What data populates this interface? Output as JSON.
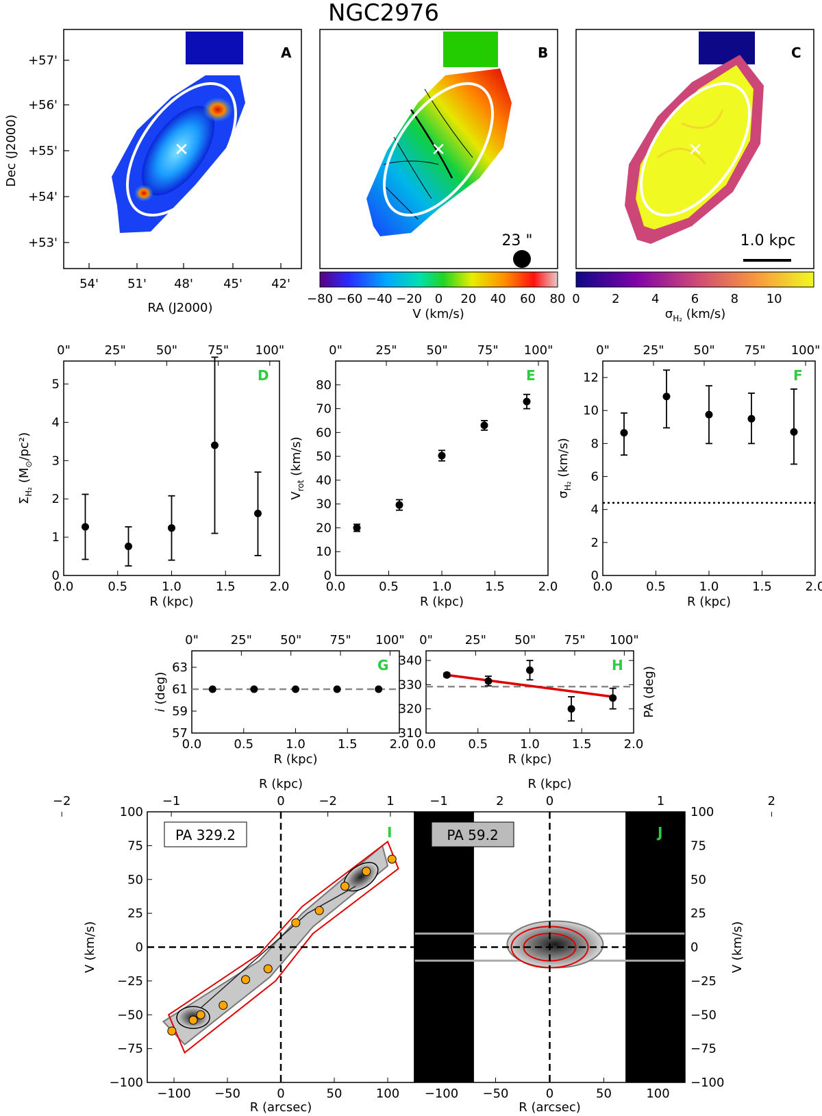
{
  "figure": {
    "title": "NGC2976",
    "panel_letter_color": "#2ecc40",
    "panels": {
      "A": "A",
      "B": "B",
      "C": "C",
      "D": "D",
      "E": "E",
      "F": "F",
      "G": "G",
      "H": "H",
      "I": "I",
      "J": "J"
    }
  },
  "maps": {
    "ra_label": "RA (J2000)",
    "dec_label": "Dec (J2000)",
    "ra_ticks": [
      "54'",
      "51'",
      "48'",
      "45'",
      "42'"
    ],
    "dec_ticks": [
      "+57'",
      "+56'",
      "+55'",
      "+54'",
      "+53'"
    ],
    "beam_label": "23 \"",
    "scalebar_label": "1.0 kpc",
    "velocity_colorbar": {
      "label": "V (km/s)",
      "ticks": [
        "−80",
        "−60",
        "−40",
        "−20",
        "0",
        "20",
        "40",
        "60",
        "80"
      ],
      "range": [
        -80,
        80
      ]
    },
    "dispersion_colorbar": {
      "label": "σH₂ (km/s)",
      "label_main": "σ",
      "label_sub": "H₂",
      "label_unit": " (km/s)",
      "ticks": [
        "0",
        "2",
        "4",
        "6",
        "8",
        "10"
      ],
      "range": [
        0,
        12
      ]
    }
  },
  "chart_data": [
    {
      "panel": "D",
      "type": "scatter",
      "xlabel": "R (kpc)",
      "ylabel": "ΣH₂ (M☉/pc²)",
      "ylabel_main": "Σ",
      "ylabel_sub": "H₂",
      "ylabel_rest": " (M",
      "ylabel_sun": "⊙",
      "ylabel_end": "/pc²)",
      "xlim": [
        0,
        2
      ],
      "ylim": [
        0,
        5.6
      ],
      "x_ticks": [
        "0.0",
        "0.5",
        "1.0",
        "1.5",
        "2.0"
      ],
      "y_ticks": [
        "0",
        "1",
        "2",
        "3",
        "4",
        "5"
      ],
      "top_ticks": [
        "0\"",
        "25\"",
        "50\"",
        "75\"",
        "100\""
      ],
      "x": [
        0.2,
        0.6,
        1.0,
        1.4,
        1.8
      ],
      "y": [
        1.27,
        0.76,
        1.24,
        3.4,
        1.62
      ],
      "yerr_low": [
        0.85,
        0.51,
        0.84,
        2.3,
        1.1
      ],
      "yerr_high": [
        0.85,
        0.51,
        0.84,
        2.3,
        1.08
      ]
    },
    {
      "panel": "E",
      "type": "scatter",
      "xlabel": "R (kpc)",
      "ylabel": "Vrot (km/s)",
      "ylabel_main": "V",
      "ylabel_sub": "rot",
      "ylabel_rest": " (km/s)",
      "xlim": [
        0,
        2
      ],
      "ylim": [
        0,
        90
      ],
      "x_ticks": [
        "0.0",
        "0.5",
        "1.0",
        "1.5",
        "2.0"
      ],
      "y_ticks": [
        "0",
        "10",
        "20",
        "30",
        "40",
        "50",
        "60",
        "70",
        "80"
      ],
      "top_ticks": [
        "0\"",
        "25\"",
        "50\"",
        "75\"",
        "100\""
      ],
      "x": [
        0.2,
        0.6,
        1.0,
        1.4,
        1.8
      ],
      "y": [
        20,
        29.6,
        50.3,
        63,
        73
      ],
      "yerr_low": [
        1.5,
        2.2,
        2.2,
        2.0,
        3.0
      ],
      "yerr_high": [
        1.5,
        2.2,
        2.2,
        2.0,
        3.0
      ]
    },
    {
      "panel": "F",
      "type": "scatter",
      "xlabel": "R (kpc)",
      "ylabel": "σH₂ (km/s)",
      "ylabel_main": "σ",
      "ylabel_sub": "H₂",
      "ylabel_rest": " (km/s)",
      "xlim": [
        0,
        2
      ],
      "ylim": [
        0,
        13
      ],
      "x_ticks": [
        "0.0",
        "0.5",
        "1.0",
        "1.5",
        "2.0"
      ],
      "y_ticks": [
        "0",
        "2",
        "4",
        "6",
        "8",
        "10",
        "12"
      ],
      "top_ticks": [
        "0\"",
        "25\"",
        "50\"",
        "75\"",
        "100\""
      ],
      "x": [
        0.2,
        0.6,
        1.0,
        1.4,
        1.8
      ],
      "y": [
        8.65,
        10.85,
        9.75,
        9.5,
        8.7
      ],
      "yerr_low": [
        1.35,
        1.9,
        1.75,
        1.5,
        1.95
      ],
      "yerr_high": [
        1.2,
        1.6,
        1.75,
        1.55,
        2.6
      ],
      "hline": 4.4
    },
    {
      "panel": "G",
      "type": "scatter",
      "xlabel": "R (kpc)",
      "ylabel": "i (deg)",
      "ylabel_main": "i",
      "ylabel_rest": " (deg)",
      "xlim": [
        0,
        2
      ],
      "ylim": [
        57,
        64.5
      ],
      "x_ticks": [
        "0.0",
        "0.5",
        "1.0",
        "1.5",
        "2.0"
      ],
      "y_ticks": [
        "57",
        "59",
        "61",
        "63"
      ],
      "top_ticks": [
        "0\"",
        "25\"",
        "50\"",
        "75\"",
        "100\""
      ],
      "x": [
        0.2,
        0.6,
        1.0,
        1.4,
        1.8
      ],
      "y": [
        61,
        61,
        61,
        61,
        61
      ],
      "hline": 61
    },
    {
      "panel": "H",
      "type": "scatter",
      "xlabel": "R (kpc)",
      "ylabel": "PA (deg)",
      "xlim": [
        0,
        2
      ],
      "ylim": [
        310,
        344
      ],
      "x_ticks": [
        "0.0",
        "0.5",
        "1.0",
        "1.5",
        "2.0"
      ],
      "y_ticks": [
        "310",
        "320",
        "330",
        "340"
      ],
      "top_ticks": [
        "0\"",
        "25\"",
        "50\"",
        "75\"",
        "100\""
      ],
      "x": [
        0.2,
        0.6,
        1.0,
        1.4,
        1.8
      ],
      "y": [
        334,
        331.5,
        336,
        320,
        324.5
      ],
      "yerr_low": [
        0.8,
        2.0,
        4.0,
        5.0,
        4.5
      ],
      "yerr_high": [
        0.8,
        2.0,
        4.0,
        5.0,
        4.0
      ],
      "hline": 329.2,
      "fit_line": {
        "x": [
          0.2,
          1.8
        ],
        "y": [
          334,
          325
        ]
      }
    },
    {
      "panel": "I",
      "type": "scatter",
      "label": "PA 329.2",
      "xlabel": "R (arcsec)",
      "ylabel": "V (km/s)",
      "top_xlabel": "R (kpc)",
      "xlim": [
        -125,
        125
      ],
      "ylim": [
        -100,
        100
      ],
      "x_ticks": [
        "−100",
        "−50",
        "0",
        "50",
        "100"
      ],
      "y_ticks": [
        "−100",
        "−75",
        "−50",
        "−25",
        "0",
        "25",
        "50",
        "75",
        "100"
      ],
      "top_ticks": [
        "−2",
        "−1",
        "0",
        "1",
        "2"
      ],
      "x": [
        -102,
        -82,
        -75,
        -54,
        -33,
        -12,
        14,
        36,
        60,
        80,
        104
      ],
      "y": [
        -62,
        -54,
        -50,
        -43,
        -24,
        -16,
        18,
        27,
        45,
        56,
        65
      ]
    },
    {
      "panel": "J",
      "type": "heatmap",
      "label": "PA 59.2",
      "xlabel": "R (arcsec)",
      "ylabel": "V (km/s)",
      "top_xlabel": "R (kpc)",
      "xlim": [
        -125,
        125
      ],
      "ylim": [
        -100,
        100
      ],
      "x_ticks": [
        "−100",
        "−50",
        "0",
        "50",
        "100"
      ],
      "y_ticks": [
        "−100",
        "−75",
        "−50",
        "−25",
        "0",
        "25",
        "50",
        "75",
        "100"
      ],
      "top_ticks": [
        "−2",
        "−1",
        "0",
        "1",
        "2"
      ]
    }
  ]
}
